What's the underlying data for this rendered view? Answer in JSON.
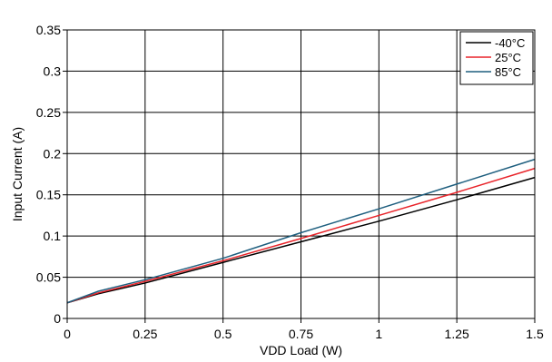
{
  "chart_data": {
    "type": "line",
    "xlabel": "VDD Load (W)",
    "ylabel": "Input Current (A)",
    "xlim": [
      0,
      1.5
    ],
    "ylim": [
      0,
      0.35
    ],
    "xticks": [
      0,
      0.25,
      0.5,
      0.75,
      1,
      1.25,
      1.5
    ],
    "yticks": [
      0,
      0.05,
      0.1,
      0.15,
      0.2,
      0.25,
      0.3,
      0.35
    ],
    "xtick_labels": [
      "0",
      "0.25",
      "0.5",
      "0.75",
      "1",
      "1.25",
      "1.5"
    ],
    "ytick_labels": [
      "0",
      "0.05",
      "0.1",
      "0.15",
      "0.2",
      "0.25",
      "0.3",
      "0.35"
    ],
    "grid": true,
    "legend_position": "top-right",
    "series": [
      {
        "name": "-40°C",
        "color": "#000000",
        "x": [
          0,
          0.1,
          0.25,
          0.5,
          0.75,
          1,
          1.25,
          1.5
        ],
        "y": [
          0.019,
          0.03,
          0.043,
          0.068,
          0.093,
          0.118,
          0.144,
          0.171
        ]
      },
      {
        "name": "25°C",
        "color": "#e8242a",
        "x": [
          0,
          0.1,
          0.25,
          0.5,
          0.75,
          1,
          1.25,
          1.5
        ],
        "y": [
          0.019,
          0.031,
          0.045,
          0.07,
          0.097,
          0.125,
          0.153,
          0.182
        ]
      },
      {
        "name": "85°C",
        "color": "#1f5f7f",
        "x": [
          0,
          0.1,
          0.25,
          0.5,
          0.75,
          1,
          1.25,
          1.5
        ],
        "y": [
          0.019,
          0.033,
          0.047,
          0.073,
          0.104,
          0.133,
          0.163,
          0.193
        ]
      }
    ]
  }
}
